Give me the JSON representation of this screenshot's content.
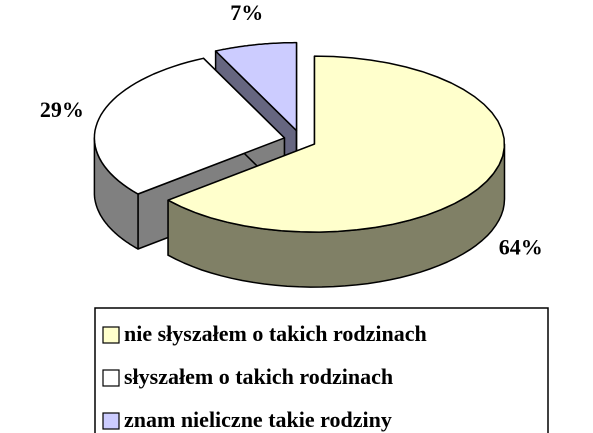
{
  "chart_data": {
    "type": "pie",
    "categories": [
      "nie słyszałem o takich rodzinach",
      "słyszałem o takich rodzinach",
      "znam nieliczne takie rodziny"
    ],
    "values": [
      64,
      29,
      7
    ],
    "value_labels": [
      "64%",
      "29%",
      "7%"
    ],
    "colors": [
      "#FFFFCC",
      "#FFFFFF",
      "#CCCCFF"
    ],
    "legend": "bottom"
  }
}
